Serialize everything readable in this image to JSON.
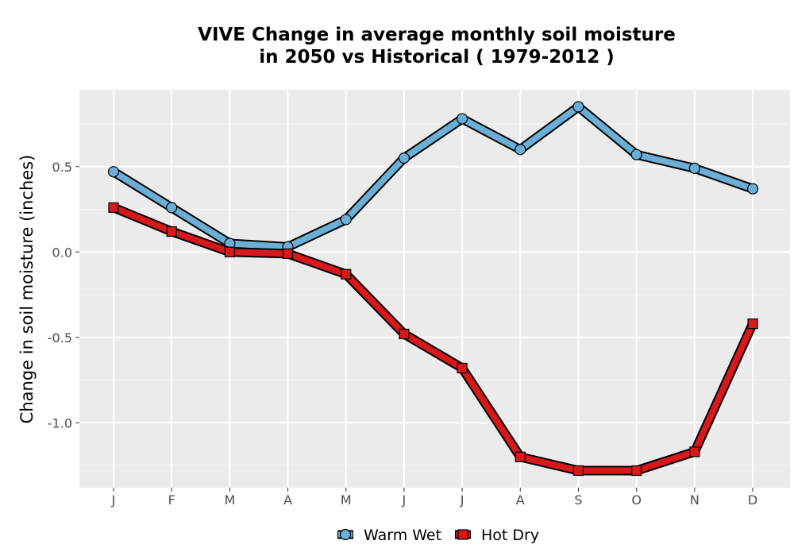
{
  "chart_data": {
    "type": "line",
    "title": "VIVE  Change in average monthly soil moisture\nin 2050 vs Historical ( 1979-2012 )",
    "xlabel": "",
    "ylabel": "Change in soil moisture (inches)",
    "categories": [
      "J",
      "F",
      "M",
      "A",
      "M",
      "J",
      "J",
      "A",
      "S",
      "O",
      "N",
      "D"
    ],
    "ylim": [
      -1.38,
      0.95
    ],
    "yticks": [
      -1.0,
      -0.5,
      0.0,
      0.5
    ],
    "ytick_labels": [
      "-1.0",
      "-0.5",
      "0.0",
      "0.5"
    ],
    "grid": true,
    "legend_position": "bottom",
    "series": [
      {
        "name": "Warm Wet",
        "marker": "circle",
        "color": "#6baed6",
        "values": [
          0.47,
          0.26,
          0.05,
          0.03,
          0.19,
          0.55,
          0.78,
          0.6,
          0.85,
          0.57,
          0.49,
          0.37
        ]
      },
      {
        "name": "Hot Dry",
        "marker": "square",
        "color": "#d7191c",
        "values": [
          0.26,
          0.12,
          0.0,
          -0.01,
          -0.13,
          -0.48,
          -0.68,
          -1.2,
          -1.28,
          -1.28,
          -1.17,
          -0.42
        ]
      }
    ]
  }
}
